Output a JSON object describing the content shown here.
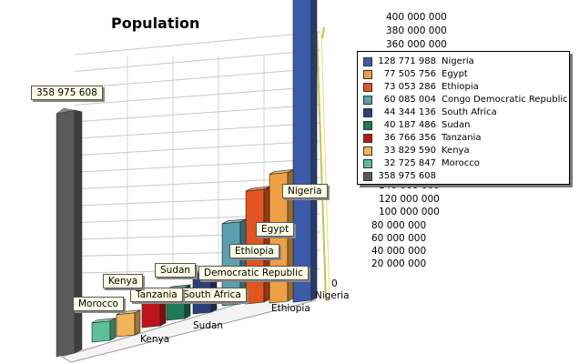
{
  "chart_data": {
    "type": "bar",
    "title": "Population",
    "categories": [
      "Nigeria",
      "Egypt",
      "Ethiopia",
      "Congo Democratic Republic",
      "South Africa",
      "Sudan",
      "Tanzania",
      "Kenya",
      "Morocco",
      ""
    ],
    "values": [
      128771988,
      77505756,
      73053286,
      60085004,
      44344136,
      40187486,
      36766356,
      33829590,
      32725847,
      358975608
    ],
    "value_labels": [
      "128 771 988",
      "77 505 756",
      "73 053 286",
      "60 085 004",
      "44 344 136",
      "40 187 486",
      "36 766 356",
      "33 829 590",
      "32 725 847",
      "358 975 608"
    ],
    "colors": [
      "#3c5ba8",
      "#f0a044",
      "#e25520",
      "#5a9fad",
      "#2b3f7a",
      "#1f7a55",
      "#c0141c",
      "#f2b456",
      "#5cbf98",
      "#5a5a5a"
    ],
    "data_labels": [
      "Nigeria",
      "Egypt",
      "Ethiopia",
      "Democratic Republic",
      "South Africa",
      "Sudan",
      "Tanzania",
      "Kenya",
      "Morocco",
      "358 975 608"
    ],
    "x_tick_labels": [
      "Nigeria",
      "Ethiopia",
      "Sudan",
      "Kenya"
    ],
    "ylim": [
      0,
      400000000
    ],
    "y_ticks": [
      {
        "value": 400000000,
        "label": "400 000 000"
      },
      {
        "value": 380000000,
        "label": "380 000 000"
      },
      {
        "value": 360000000,
        "label": "360 000 000"
      },
      {
        "value": 140000000,
        "label": "140 000 000"
      },
      {
        "value": 120000000,
        "label": "120 000 000"
      },
      {
        "value": 100000000,
        "label": "100 000 000"
      },
      {
        "value": 80000000,
        "label": "80 000 000"
      },
      {
        "value": 60000000,
        "label": "60 000 000"
      },
      {
        "value": 40000000,
        "label": "40 000 000"
      },
      {
        "value": 20000000,
        "label": "20 000 000"
      },
      {
        "value": 0,
        "label": "0"
      }
    ],
    "grid": true,
    "legend_position": "right"
  }
}
